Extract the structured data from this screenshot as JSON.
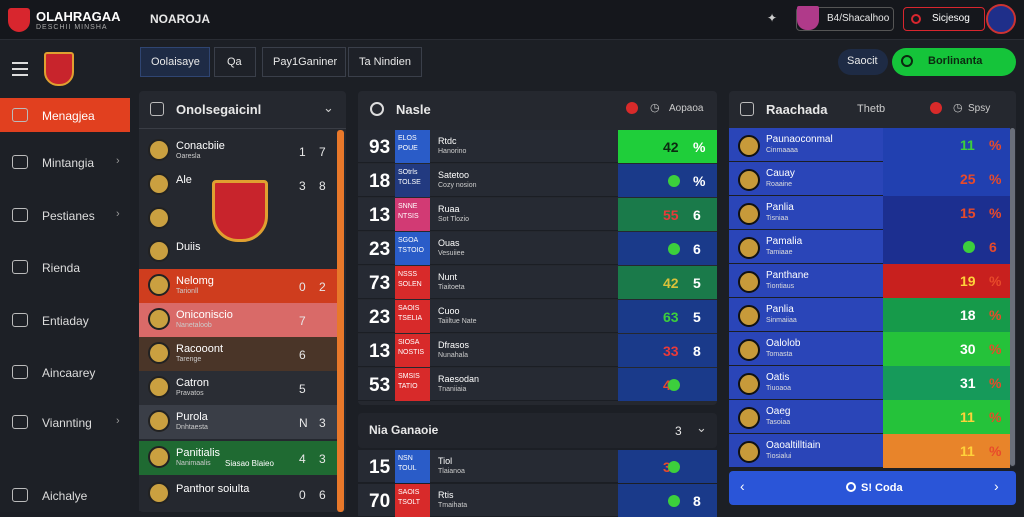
{
  "header": {
    "app_title": "OLAHRAGAA",
    "app_subtitle": "DESCHII MINSHA",
    "nav_title": "NOAROJA",
    "user_label": "B4/Shacalhoo",
    "alert_label": "Sicjesog"
  },
  "sidebar": {
    "items": [
      {
        "label": "Menagjea",
        "active": true,
        "icon": "shield-icon",
        "chevron": false
      },
      {
        "label": "Mintangia",
        "active": false,
        "icon": "search-icon",
        "chevron": true
      },
      {
        "label": "Pestianes",
        "active": false,
        "icon": "puzzle-icon",
        "chevron": true
      },
      {
        "label": "Rienda",
        "active": false,
        "icon": "monitor-icon",
        "chevron": false
      },
      {
        "label": "Entiaday",
        "active": false,
        "icon": "user-icon",
        "chevron": false
      },
      {
        "label": "Aincaarey",
        "active": false,
        "icon": "send-icon",
        "chevron": false
      },
      {
        "label": "Viannting",
        "active": false,
        "icon": "window-icon",
        "chevron": true
      },
      {
        "label": "Aichalye",
        "active": false,
        "icon": "gear-icon",
        "chevron": false
      }
    ]
  },
  "toolbar": {
    "tab1": "Oolaisaye",
    "tab2": "Qa",
    "tab3": "Pay1Ganiner",
    "tab4": "Ta Nindien",
    "sort_label": "Saocit",
    "action_label": "Borlinanta"
  },
  "panel_left": {
    "title": "Onolsegaicinl",
    "rows": [
      {
        "name": "Conacbiie",
        "sub": "Oaresla",
        "a": "1",
        "b": "7",
        "bg": "#25282f"
      },
      {
        "name": "Ale",
        "sub": "",
        "a": "3",
        "b": "8",
        "bg": "#25282f"
      },
      {
        "name": "",
        "sub": "",
        "a": "",
        "b": "",
        "bg": "#25282f"
      },
      {
        "name": "Duiis",
        "sub": "",
        "a": "",
        "b": "",
        "bg": "#25282f"
      },
      {
        "name": "Nelomg",
        "sub": "Tarionll",
        "a": "0",
        "b": "2",
        "bg": "#cf3d1e"
      },
      {
        "name": "Oniconiscio",
        "sub": "Nanetaloob",
        "a": "7",
        "b": "",
        "bg": "#d96a68"
      },
      {
        "name": "Racooont",
        "sub": "Tarenge",
        "a": "6",
        "b": "",
        "bg": "#4a3528"
      },
      {
        "name": "Catron",
        "sub": "Pravatos",
        "a": "5",
        "b": "",
        "bg": "#2a2d34"
      },
      {
        "name": "Purola",
        "sub": "Dnhtaesta",
        "a": "N",
        "b": "3",
        "bg": "#3a3e47"
      },
      {
        "name": "Panitialis",
        "sub": "Nanimaalis",
        "a": "4",
        "b": "3",
        "bg": "#1f6a32",
        "note": "Siasao Blaieo"
      },
      {
        "name": "Panthor soiulta",
        "sub": "",
        "a": "0",
        "b": "6",
        "bg": "#25282f"
      }
    ]
  },
  "panel_mid": {
    "title": "Nasle",
    "action": "Aopaoa",
    "section_title": "Nia Ganaoie",
    "section_count": "3",
    "rows": [
      {
        "num": "93",
        "tag1": "ELOS",
        "tag2": "POUE",
        "tag_color": "#2a5cc8",
        "name": "Rtdc",
        "sub": "Hanorino",
        "score": "42",
        "suffix": "%",
        "score_bg": "#1fce3a",
        "score_color": "#0b2a10",
        "dot": false
      },
      {
        "num": "18",
        "tag1": "SOtrls",
        "tag2": "TOLSE",
        "tag_color": "#223a80",
        "name": "Satetoo",
        "sub": "Cozy nosion",
        "score": "",
        "suffix": "%",
        "score_bg": "#1a3a8a",
        "score_color": "#3ccf3c",
        "dot": true
      },
      {
        "num": "13",
        "tag1": "SNNE",
        "tag2": "NTSIS",
        "tag_color": "#d23a74",
        "name": "Ruaa",
        "sub": "Sot Tlozio",
        "score": "55",
        "suffix": "6",
        "score_bg": "#1a7a4a",
        "score_color": "#e83a3a",
        "dot": false
      },
      {
        "num": "23",
        "tag1": "SGOA",
        "tag2": "TSTOIO",
        "tag_color": "#2a5cc8",
        "name": "Ouas",
        "sub": "Vesuiiee",
        "score": "",
        "suffix": "6",
        "score_bg": "#1a3a8a",
        "score_color": "#e84a2a",
        "dot": true
      },
      {
        "num": "73",
        "tag1": "NSSS",
        "tag2": "SOLEN",
        "tag_color": "#d82a2a",
        "name": "Nunt",
        "sub": "Tiaitoeta",
        "score": "42",
        "suffix": "5",
        "score_bg": "#1a7a4a",
        "score_color": "#d8c23a",
        "dot": false
      },
      {
        "num": "23",
        "tag1": "SAOIS",
        "tag2": "TSELIA",
        "tag_color": "#d82a2a",
        "name": "Cuoo",
        "sub": "Taiiltue Nate",
        "score": "63",
        "suffix": "5",
        "score_bg": "#1a3a8a",
        "score_color": "#3ccf3c",
        "dot": false
      },
      {
        "num": "13",
        "tag1": "SIOSA",
        "tag2": "NOSTIS",
        "tag_color": "#d82a2a",
        "name": "Dfrasos",
        "sub": "Nunahala",
        "score": "33",
        "suffix": "8",
        "score_bg": "#1a3a8a",
        "score_color": "#e83a3a",
        "dot": false
      },
      {
        "num": "53",
        "tag1": "SMSIS",
        "tag2": "TATIO",
        "tag_color": "#d82a2a",
        "name": "Raesodan",
        "sub": "Tnaniiaia",
        "score": "43",
        "suffix": "",
        "score_bg": "#1a3a8a",
        "score_color": "#e84a2a",
        "dot": true
      }
    ],
    "bottom_rows": [
      {
        "num": "15",
        "tag1": "NSN",
        "tag2": "TOUL",
        "tag_color": "#2a5cc8",
        "name": "Tiol",
        "sub": "Tlaianoa",
        "score": "33",
        "suffix": "",
        "score_bg": "#1a3a8a",
        "score_color": "#e84a2a",
        "dot": true
      },
      {
        "num": "70",
        "tag1": "SAOIS",
        "tag2": "TSOLT",
        "tag_color": "#d82a2a",
        "name": "Rtis",
        "sub": "Tmaihata",
        "score": "",
        "suffix": "8",
        "score_bg": "#1a3a8a",
        "score_color": "#3ccf3c",
        "dot": true
      }
    ]
  },
  "panel_right": {
    "title": "Raachada",
    "tab": "Thetb",
    "action": "Spsy",
    "footer_label": "S! Coda",
    "rows": [
      {
        "name": "Paunaoconmal",
        "sub": "Cinmaaaa",
        "score": "11",
        "suffix": "%",
        "score_bg": "#2140b0",
        "score_color": "#3ccf3c",
        "dot": false,
        "row_bg": "#2a45b8"
      },
      {
        "name": "Cauay",
        "sub": "Roaaine",
        "score": "25",
        "suffix": "%",
        "score_bg": "#2140b0",
        "score_color": "#e84a2a",
        "dot": false,
        "row_bg": "#2a45b8"
      },
      {
        "name": "Panlia",
        "sub": "Tisniaa",
        "score": "15",
        "suffix": "%",
        "score_bg": "#1c2f90",
        "score_color": "#e84a2a",
        "dot": false,
        "row_bg": "#2a45b8"
      },
      {
        "name": "Pamalia",
        "sub": "Tamiaae",
        "score": "",
        "suffix": "6",
        "score_bg": "#1c2f90",
        "score_color": "#3ccf3c",
        "dot": true,
        "row_bg": "#2a45b8"
      },
      {
        "name": "Panthane",
        "sub": "Tiontiaus",
        "score": "19",
        "suffix": "%",
        "score_bg": "#c8201e",
        "score_color": "#ffd23a",
        "dot": false,
        "row_bg": "#2a45b8"
      },
      {
        "name": "Panlia",
        "sub": "Sinmaiiaa",
        "score": "18",
        "suffix": "%",
        "score_bg": "#169a4a",
        "score_color": "#ffffff",
        "dot": false,
        "row_bg": "#2a45b8"
      },
      {
        "name": "Oalolob",
        "sub": "Tomasta",
        "score": "30",
        "suffix": "%",
        "score_bg": "#25c23a",
        "score_color": "#ffffff",
        "dot": false,
        "row_bg": "#2a45b8"
      },
      {
        "name": "Oatis",
        "sub": "Tiuoaoa",
        "score": "31",
        "suffix": "%",
        "score_bg": "#169a5a",
        "score_color": "#ffffff",
        "dot": false,
        "row_bg": "#2a45b8"
      },
      {
        "name": "Oaeg",
        "sub": "Tasoiaa",
        "score": "11",
        "suffix": "%",
        "score_bg": "#25c23a",
        "score_color": "#ffd23a",
        "dot": false,
        "row_bg": "#2a45b8"
      },
      {
        "name": "Oaoaltilltiain",
        "sub": "Tiosialui",
        "score": "11",
        "suffix": "%",
        "score_bg": "#e8842a",
        "score_color": "#ffd23a",
        "dot": false,
        "row_bg": "#2a45b8"
      }
    ]
  },
  "colors": {
    "accent": "#e1401f",
    "green": "#15c43a",
    "blue": "#2a45b8"
  }
}
